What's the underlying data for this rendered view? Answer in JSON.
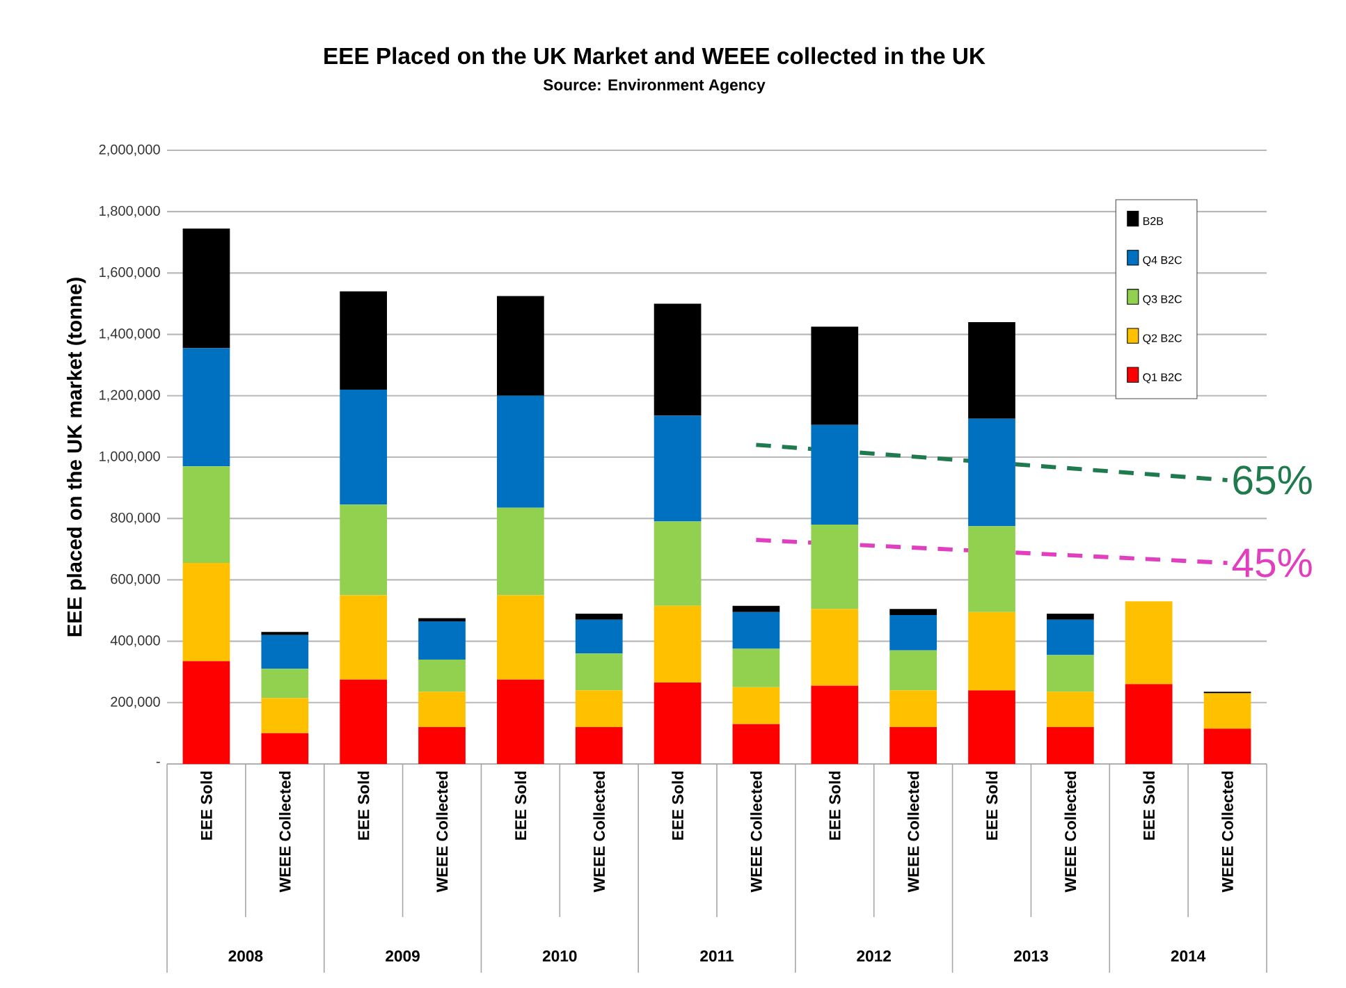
{
  "chart_data": {
    "type": "bar",
    "stacked": true,
    "title": "EEE Placed on the UK Market and WEEE collected in the UK",
    "subtitle": "Source: Environment Agency",
    "ylabel": "EEE placed on the UK market (tonne)",
    "categories": [
      "EEE Sold",
      "WEEE Collected",
      "EEE Sold",
      "WEEE Collected",
      "EEE Sold",
      "WEEE Collected",
      "EEE Sold",
      "WEEE Collected",
      "EEE Sold",
      "WEEE Collected",
      "EEE Sold",
      "WEEE Collected",
      "EEE Sold",
      "WEEE Collected"
    ],
    "annotations": [
      "2008",
      "2009",
      "2010",
      "2011",
      "2012",
      "2013",
      "2014"
    ],
    "ylim": [
      0,
      2000000
    ],
    "yticks": [
      {
        "value": 0,
        "label": "-"
      },
      {
        "value": 200000,
        "label": "200,000"
      },
      {
        "value": 400000,
        "label": "400,000"
      },
      {
        "value": 600000,
        "label": "600,000"
      },
      {
        "value": 800000,
        "label": "800,000"
      },
      {
        "value": 1000000,
        "label": "1,000,000"
      },
      {
        "value": 1200000,
        "label": "1,200,000"
      },
      {
        "value": 1400000,
        "label": "1,400,000"
      },
      {
        "value": 1600000,
        "label": "1,600,000"
      },
      {
        "value": 1800000,
        "label": "1,800,000"
      },
      {
        "value": 2000000,
        "label": "2,000,000"
      }
    ],
    "grid": "y",
    "legend": "top right",
    "series": [
      {
        "name": "Q1 B2C",
        "color": "#ff0000",
        "values": [
          335000,
          100000,
          275000,
          120000,
          275000,
          120000,
          265000,
          130000,
          255000,
          120000,
          240000,
          120000,
          260000,
          115000
        ]
      },
      {
        "name": "Q2 B2C",
        "color": "#ffc000",
        "values": [
          320000,
          115000,
          275000,
          115000,
          275000,
          120000,
          250000,
          120000,
          250000,
          120000,
          255000,
          115000,
          270000,
          115000
        ]
      },
      {
        "name": "Q3 B2C",
        "color": "#92d050",
        "values": [
          315000,
          95000,
          295000,
          105000,
          285000,
          120000,
          275000,
          125000,
          275000,
          130000,
          280000,
          120000,
          null,
          null
        ]
      },
      {
        "name": "Q4 B2C",
        "color": "#0070c0",
        "values": [
          385000,
          110000,
          375000,
          125000,
          365000,
          110000,
          345000,
          120000,
          325000,
          115000,
          350000,
          115000,
          null,
          null
        ]
      },
      {
        "name": "B2B",
        "color": "#000000",
        "values": [
          390000,
          10000,
          320000,
          10000,
          325000,
          20000,
          365000,
          20000,
          320000,
          20000,
          315000,
          20000,
          null,
          5000
        ]
      },
      {
        "name": "65%",
        "type": "line",
        "line_style": "dashed",
        "color": "#1f7a4d",
        "values": [
          null,
          null,
          null,
          null,
          null,
          null,
          null,
          1040000,
          null,
          null,
          null,
          null,
          null,
          925000
        ]
      },
      {
        "name": "45%",
        "type": "line",
        "line_style": "dashed",
        "color": "#e040c0",
        "values": [
          null,
          null,
          null,
          null,
          null,
          null,
          null,
          730000,
          null,
          null,
          null,
          null,
          null,
          655000
        ]
      }
    ]
  }
}
